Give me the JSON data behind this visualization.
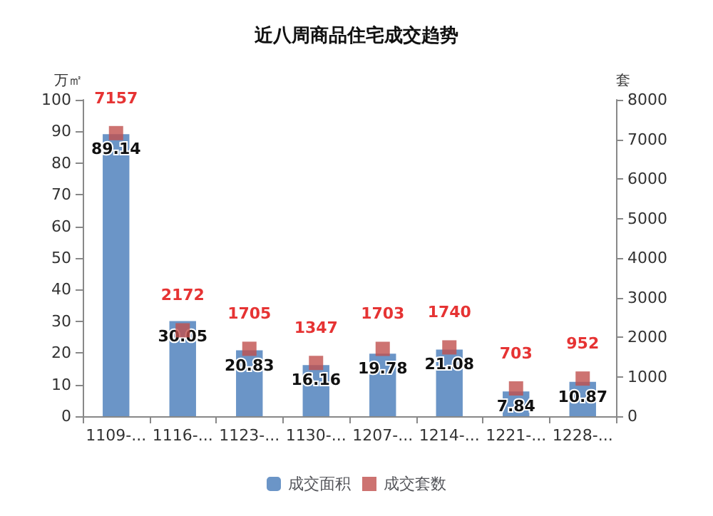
{
  "chart_data": {
    "type": "bar",
    "title": "近八周商品住宅成交趋势",
    "ylabel": "万㎡",
    "y2label": "套",
    "categories": [
      "1109-...",
      "1116-...",
      "1123-...",
      "1130-...",
      "1207-...",
      "1214-...",
      "1221-...",
      "1228-..."
    ],
    "series": [
      {
        "name": "成交面积",
        "color": "#6b95c7",
        "values": [
          89.14,
          30.05,
          20.83,
          16.16,
          19.78,
          21.08,
          7.84,
          10.87
        ]
      },
      {
        "name": "成交套数",
        "type": "scatter",
        "axis": "y2",
        "color": "#c0504d",
        "marker": "square",
        "x": [
          "1109-...",
          "1116-...",
          "1123-...",
          "1130-...",
          "1207-...",
          "1214-...",
          "1221-...",
          "1228-..."
        ],
        "values": [
          7157,
          2172,
          1705,
          1347,
          1703,
          1740,
          703,
          952
        ]
      }
    ],
    "ylim": [
      0,
      100
    ],
    "yticks": [
      0,
      10,
      20,
      30,
      40,
      50,
      60,
      70,
      80,
      90,
      100
    ],
    "y2lim": [
      0,
      8000
    ],
    "y2ticks": [
      0,
      1000,
      2000,
      3000,
      4000,
      5000,
      6000,
      7000,
      8000
    ],
    "data_labels": true,
    "grid": false,
    "legend": "bottom"
  }
}
